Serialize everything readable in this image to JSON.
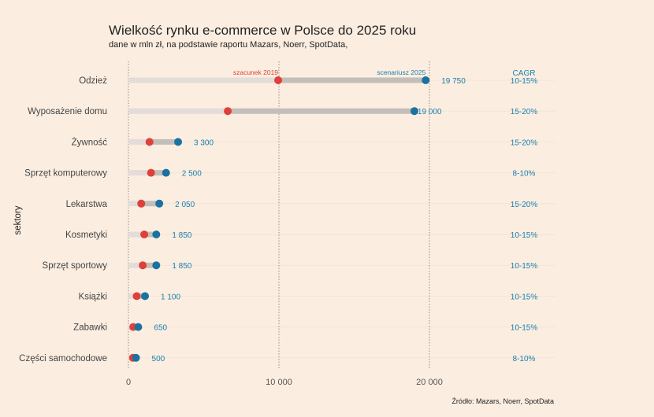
{
  "chart_data": {
    "type": "dumbbell",
    "title": "Wielkość rynku e-commerce w Polsce do 2025 roku",
    "subtitle": "dane w mln zł, na podstawie raportu Mazars, Noerr, SpotData,",
    "ylabel": "sektory",
    "source": "Źródło: Mazars, Noerr, SpotData",
    "xlim": [
      0,
      28500
    ],
    "xticks": [
      0,
      10000,
      20000
    ],
    "xtick_labels": [
      "0",
      "10 000",
      "20 000"
    ],
    "series": [
      {
        "name": "szacunek 2019",
        "color": "#e0403a"
      },
      {
        "name": "scenariusz 2025",
        "color": "#1a72a0"
      }
    ],
    "cagr_header": "CAGR",
    "categories": [
      "Odzież",
      "Wyposażenie domu",
      "Żywność",
      "Sprzęt komputerowy",
      "Lekarstwa",
      "Kosmetyki",
      "Sprzęt sportowy",
      "Książki",
      "Zabawki",
      "Części samochodowe"
    ],
    "values_2019": [
      9950,
      6600,
      1400,
      1500,
      850,
      1050,
      950,
      550,
      320,
      300
    ],
    "values_2025": [
      19750,
      19000,
      3300,
      2500,
      2050,
      1850,
      1850,
      1100,
      650,
      500
    ],
    "value_labels": [
      "19 750",
      "19 000",
      "3 300",
      "2 500",
      "2 050",
      "1 850",
      "1 850",
      "1 100",
      "650",
      "500"
    ],
    "cagr": [
      "10-15%",
      "15-20%",
      "15-20%",
      "8-10%",
      "15-20%",
      "10-15%",
      "10-15%",
      "10-15%",
      "10-15%",
      "8-10%"
    ]
  }
}
